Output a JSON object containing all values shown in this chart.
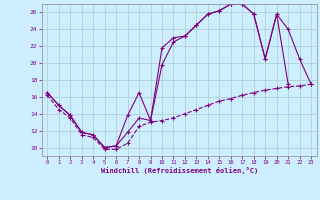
{
  "xlabel": "Windchill (Refroidissement éolien,°C)",
  "bg_color": "#cceeff",
  "line_color": "#800080",
  "grid_color": "#aacccc",
  "xlim": [
    -0.5,
    23.5
  ],
  "ylim": [
    9.0,
    27.0
  ],
  "xticks": [
    0,
    1,
    2,
    3,
    4,
    5,
    6,
    7,
    8,
    9,
    10,
    11,
    12,
    13,
    14,
    15,
    16,
    17,
    18,
    19,
    20,
    21,
    22,
    23
  ],
  "yticks": [
    10,
    12,
    14,
    16,
    18,
    20,
    22,
    24,
    26
  ],
  "line1_x": [
    0,
    1,
    2,
    3,
    4,
    5,
    6,
    7,
    8,
    9,
    10,
    11,
    12,
    13,
    14,
    15,
    16,
    17,
    18,
    19,
    20,
    21
  ],
  "line1_y": [
    16.5,
    15.0,
    13.8,
    11.8,
    11.5,
    10.0,
    10.2,
    13.8,
    16.5,
    13.2,
    21.8,
    23.0,
    23.2,
    24.5,
    25.8,
    26.2,
    27.0,
    27.0,
    25.8,
    20.5,
    25.8,
    17.5
  ],
  "line2_x": [
    0,
    1,
    2,
    3,
    4,
    5,
    6,
    7,
    8,
    9,
    10,
    11,
    12,
    13,
    14,
    15,
    16,
    17,
    18,
    19,
    20,
    21,
    22,
    23
  ],
  "line2_y": [
    16.5,
    15.0,
    13.8,
    11.8,
    11.5,
    10.0,
    10.2,
    11.8,
    13.5,
    13.2,
    19.8,
    22.5,
    23.2,
    24.5,
    25.8,
    26.2,
    27.0,
    27.0,
    25.8,
    20.5,
    25.8,
    24.0,
    20.5,
    17.5
  ],
  "line3_x": [
    0,
    1,
    2,
    3,
    4,
    5,
    6,
    7,
    8,
    9,
    10,
    11,
    12,
    13,
    14,
    15,
    16,
    17,
    18,
    19,
    20,
    21,
    22,
    23
  ],
  "line3_y": [
    16.2,
    14.5,
    13.5,
    11.5,
    11.2,
    9.8,
    9.8,
    10.5,
    12.5,
    13.0,
    13.2,
    13.5,
    14.0,
    14.5,
    15.0,
    15.5,
    15.8,
    16.2,
    16.5,
    16.8,
    17.0,
    17.2,
    17.3,
    17.5
  ]
}
